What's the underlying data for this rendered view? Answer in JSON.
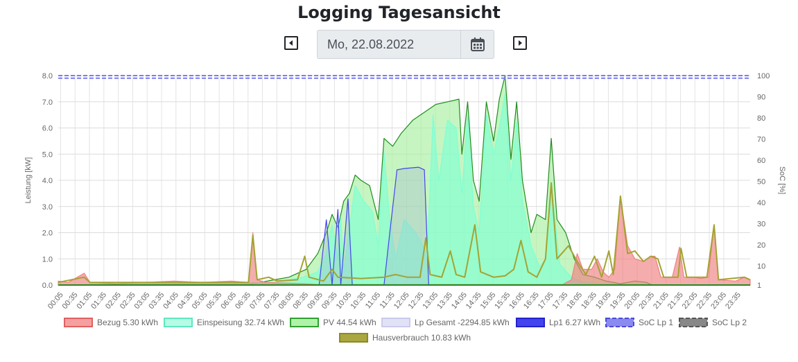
{
  "header": {
    "title": "Logging Tagesansicht",
    "date_value": "Mo, 22.08.2022"
  },
  "icons": {
    "prev": "caret-left-square-icon",
    "next": "caret-right-square-icon",
    "calendar": "calendar-icon"
  },
  "chart_data": {
    "type": "area",
    "xlabels": [
      "00:05",
      "00:35",
      "01:05",
      "01:35",
      "02:05",
      "02:35",
      "03:05",
      "03:35",
      "04:05",
      "04:35",
      "05:05",
      "05:35",
      "06:05",
      "06:35",
      "07:05",
      "07:35",
      "08:05",
      "08:35",
      "09:05",
      "09:35",
      "10:05",
      "10:35",
      "11:05",
      "11:35",
      "12:05",
      "12:35",
      "13:05",
      "13:35",
      "14:05",
      "14:35",
      "15:05",
      "15:35",
      "16:05",
      "16:35",
      "17:05",
      "17:35",
      "18:05",
      "18:35",
      "19:05",
      "19:35",
      "20:05",
      "20:35",
      "21:05",
      "21:35",
      "22:05",
      "22:35",
      "23:05",
      "23:35"
    ],
    "ylabel_left": "Leistung [kW]",
    "ylabel_right": "SoC [%]",
    "ylim_left": [
      0,
      8
    ],
    "ylim_right": [
      1,
      100
    ],
    "yticks_left": [
      "0.0",
      "1.0",
      "2.0",
      "3.0",
      "4.0",
      "5.0",
      "6.0",
      "7.0",
      "8.0"
    ],
    "yticks_right": [
      "1",
      "10",
      "20",
      "30",
      "40",
      "50",
      "60",
      "70",
      "80",
      "90",
      "100"
    ],
    "grid": true,
    "legend_position": "bottom",
    "series": [
      {
        "name": "Bezug 5.30 kWh",
        "color": "#f08080",
        "style": "area",
        "points": [
          [
            0,
            0.15
          ],
          [
            0.35,
            0.1
          ],
          [
            0.9,
            0.45
          ],
          [
            1.1,
            0.1
          ],
          [
            2,
            0.05
          ],
          [
            3,
            0.1
          ],
          [
            4,
            0.15
          ],
          [
            5,
            0.1
          ],
          [
            6,
            0.15
          ],
          [
            6.6,
            0.1
          ],
          [
            6.75,
            2.0
          ],
          [
            6.9,
            0.2
          ],
          [
            7.2,
            0.1
          ],
          [
            8.5,
            0.05
          ],
          [
            9,
            0.02
          ],
          [
            17.5,
            0.02
          ],
          [
            17.8,
            0.2
          ],
          [
            18.0,
            1.2
          ],
          [
            18.2,
            0.6
          ],
          [
            18.5,
            0.6
          ],
          [
            18.7,
            1.0
          ],
          [
            18.9,
            0.5
          ],
          [
            19.1,
            0.3
          ],
          [
            19.3,
            0.6
          ],
          [
            19.5,
            3.4
          ],
          [
            19.75,
            1.5
          ],
          [
            20.0,
            1.0
          ],
          [
            20.3,
            0.9
          ],
          [
            20.55,
            1.1
          ],
          [
            20.7,
            1.1
          ],
          [
            20.9,
            0.3
          ],
          [
            21.3,
            0.3
          ],
          [
            21.55,
            1.45
          ],
          [
            21.7,
            0.3
          ],
          [
            22.0,
            0.3
          ],
          [
            22.3,
            0.25
          ],
          [
            22.55,
            0.3
          ],
          [
            22.75,
            2.3
          ],
          [
            22.9,
            0.2
          ],
          [
            23.5,
            0.15
          ],
          [
            23.8,
            0.3
          ],
          [
            24,
            0.2
          ]
        ]
      },
      {
        "name": "Einspeisung 32.74 kWh",
        "color": "#7fffd4",
        "style": "area",
        "points": [
          [
            0,
            0
          ],
          [
            7.5,
            0.1
          ],
          [
            8.5,
            0.3
          ],
          [
            9.0,
            0.5
          ],
          [
            9.3,
            1.2
          ],
          [
            9.5,
            2.3
          ],
          [
            9.7,
            1.0
          ],
          [
            9.8,
            2.6
          ],
          [
            9.9,
            0.5
          ],
          [
            10.1,
            2.2
          ],
          [
            10.3,
            3.8
          ],
          [
            10.6,
            3.2
          ],
          [
            10.9,
            2.8
          ],
          [
            11.1,
            1.5
          ],
          [
            11.3,
            5.1
          ],
          [
            11.5,
            2.5
          ],
          [
            11.7,
            1.0
          ],
          [
            12.0,
            2.5
          ],
          [
            12.4,
            2.0
          ],
          [
            12.8,
            1.2
          ],
          [
            13.0,
            6.5
          ],
          [
            13.2,
            4.0
          ],
          [
            13.5,
            6.3
          ],
          [
            13.8,
            6.0
          ],
          [
            14.0,
            3.5
          ],
          [
            14.2,
            6.5
          ],
          [
            14.4,
            3.0
          ],
          [
            14.6,
            2.0
          ],
          [
            14.85,
            6.5
          ],
          [
            15.1,
            5.0
          ],
          [
            15.3,
            6.0
          ],
          [
            15.5,
            7.3
          ],
          [
            15.7,
            4.0
          ],
          [
            15.9,
            6.2
          ],
          [
            16.1,
            3.2
          ],
          [
            16.4,
            1.5
          ],
          [
            16.7,
            0.7
          ],
          [
            16.9,
            1.0
          ],
          [
            17.1,
            3.8
          ],
          [
            17.4,
            0.8
          ],
          [
            17.8,
            0.3
          ],
          [
            18.2,
            0.1
          ],
          [
            18.8,
            0.05
          ],
          [
            19.5,
            0.02
          ],
          [
            24,
            0
          ]
        ]
      },
      {
        "name": "PV 44.54 kWh",
        "color": "#a8f0a0",
        "style": "area",
        "stroke": "#1e8c1e",
        "points": [
          [
            0,
            0
          ],
          [
            6.5,
            0
          ],
          [
            7.0,
            0.1
          ],
          [
            7.5,
            0.2
          ],
          [
            8.0,
            0.3
          ],
          [
            8.6,
            0.6
          ],
          [
            9.0,
            1.2
          ],
          [
            9.3,
            2.0
          ],
          [
            9.5,
            2.7
          ],
          [
            9.7,
            2.2
          ],
          [
            9.9,
            3.2
          ],
          [
            10.1,
            3.5
          ],
          [
            10.3,
            4.2
          ],
          [
            10.5,
            4.0
          ],
          [
            10.8,
            3.8
          ],
          [
            11.1,
            2.5
          ],
          [
            11.3,
            5.6
          ],
          [
            11.6,
            5.3
          ],
          [
            11.9,
            5.8
          ],
          [
            12.3,
            6.3
          ],
          [
            12.7,
            6.6
          ],
          [
            13.1,
            6.9
          ],
          [
            13.5,
            7.0
          ],
          [
            13.9,
            7.1
          ],
          [
            14.0,
            5.0
          ],
          [
            14.2,
            7.0
          ],
          [
            14.4,
            4.0
          ],
          [
            14.6,
            3.2
          ],
          [
            14.85,
            7.0
          ],
          [
            15.1,
            5.5
          ],
          [
            15.3,
            7.1
          ],
          [
            15.5,
            8.0
          ],
          [
            15.7,
            4.8
          ],
          [
            15.9,
            7.0
          ],
          [
            16.1,
            4.0
          ],
          [
            16.4,
            2.0
          ],
          [
            16.6,
            2.7
          ],
          [
            16.9,
            2.5
          ],
          [
            17.1,
            5.6
          ],
          [
            17.3,
            2.5
          ],
          [
            17.6,
            2.0
          ],
          [
            17.9,
            1.0
          ],
          [
            18.2,
            0.4
          ],
          [
            18.6,
            0.3
          ],
          [
            19.0,
            0.15
          ],
          [
            19.5,
            0.05
          ],
          [
            20.0,
            0.15
          ],
          [
            20.4,
            0.1
          ],
          [
            20.6,
            0
          ],
          [
            24,
            0
          ]
        ]
      },
      {
        "name": "Lp Gesamt -2294.85 kWh",
        "color": "#dcdcf5",
        "style": "area",
        "points": []
      },
      {
        "name": "Lp1 6.27 kWh",
        "color": "#4444ee",
        "style": "line-area",
        "points": [
          [
            0,
            0
          ],
          [
            9.05,
            0
          ],
          [
            9.3,
            2.5
          ],
          [
            9.5,
            0
          ],
          [
            9.7,
            2.9
          ],
          [
            9.8,
            0
          ],
          [
            10.05,
            3.3
          ],
          [
            10.2,
            0
          ],
          [
            11.3,
            0
          ],
          [
            11.5,
            2.0
          ],
          [
            11.75,
            4.4
          ],
          [
            12.0,
            4.45
          ],
          [
            12.5,
            4.5
          ],
          [
            12.7,
            4.4
          ],
          [
            12.85,
            0
          ],
          [
            24,
            0
          ]
        ]
      },
      {
        "name": "SoC Lp 1",
        "color": "#7b7bee",
        "style": "dashed",
        "points": [
          [
            0,
            8.0
          ],
          [
            24,
            8.0
          ]
        ]
      },
      {
        "name": "SoC Lp 2",
        "color": "#808080",
        "style": "dashed",
        "points": []
      },
      {
        "name": "Hausverbrauch 10.83 kWh",
        "color": "#a3a332",
        "style": "line",
        "points": [
          [
            0,
            0.1
          ],
          [
            0.9,
            0.3
          ],
          [
            1.1,
            0.1
          ],
          [
            6.6,
            0.1
          ],
          [
            6.75,
            1.9
          ],
          [
            6.9,
            0.2
          ],
          [
            7.3,
            0.3
          ],
          [
            7.6,
            0.15
          ],
          [
            8.3,
            0.2
          ],
          [
            8.55,
            1.1
          ],
          [
            8.7,
            0.3
          ],
          [
            9.2,
            0.15
          ],
          [
            9.5,
            0.6
          ],
          [
            9.7,
            0.3
          ],
          [
            10.5,
            0.25
          ],
          [
            11.3,
            0.3
          ],
          [
            11.7,
            0.4
          ],
          [
            12.1,
            0.3
          ],
          [
            12.55,
            0.3
          ],
          [
            12.75,
            1.8
          ],
          [
            12.9,
            0.4
          ],
          [
            13.3,
            0.3
          ],
          [
            13.6,
            1.3
          ],
          [
            13.8,
            0.4
          ],
          [
            14.1,
            0.3
          ],
          [
            14.45,
            2.3
          ],
          [
            14.65,
            0.5
          ],
          [
            15.1,
            0.3
          ],
          [
            15.5,
            0.35
          ],
          [
            15.8,
            0.6
          ],
          [
            16.05,
            1.7
          ],
          [
            16.3,
            0.5
          ],
          [
            16.6,
            0.3
          ],
          [
            16.9,
            1.0
          ],
          [
            17.1,
            3.9
          ],
          [
            17.3,
            1.0
          ],
          [
            17.7,
            1.5
          ],
          [
            18.0,
            0.9
          ],
          [
            18.3,
            0.4
          ],
          [
            18.6,
            1.1
          ],
          [
            18.85,
            0.3
          ],
          [
            19.1,
            1.3
          ],
          [
            19.25,
            0.4
          ],
          [
            19.5,
            3.4
          ],
          [
            19.75,
            1.2
          ],
          [
            20.0,
            1.3
          ],
          [
            20.3,
            0.9
          ],
          [
            20.55,
            1.1
          ],
          [
            20.8,
            1.0
          ],
          [
            21.0,
            0.3
          ],
          [
            21.5,
            0.3
          ],
          [
            21.6,
            1.4
          ],
          [
            21.8,
            0.3
          ],
          [
            22.5,
            0.3
          ],
          [
            22.75,
            2.3
          ],
          [
            22.9,
            0.2
          ],
          [
            23.8,
            0.3
          ],
          [
            24,
            0.2
          ]
        ]
      }
    ]
  }
}
